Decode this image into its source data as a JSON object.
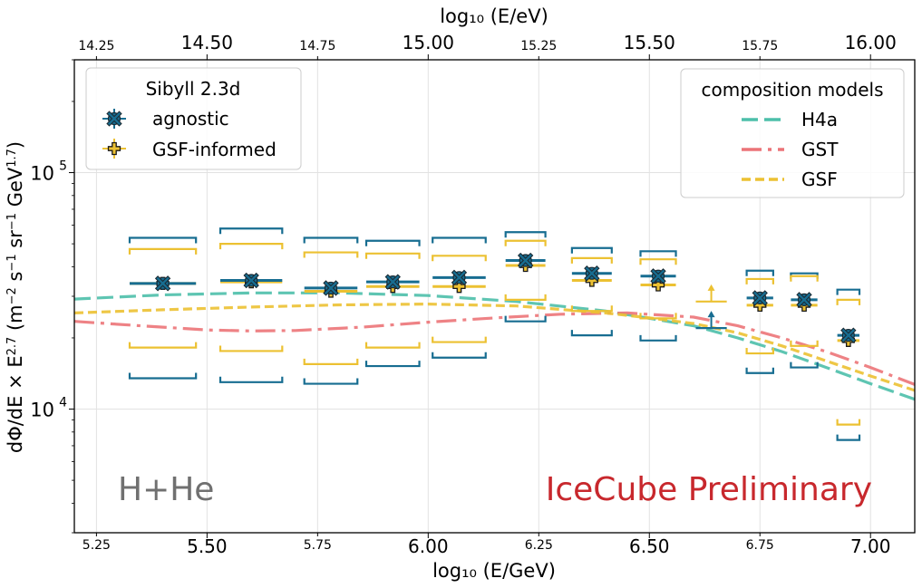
{
  "chart_data": {
    "type": "scatter",
    "xlabel": "log₁₀ (E/GeV)",
    "x2label": "log₁₀ (E/eV)",
    "ylabel_parts": [
      "dΦ/dE × E",
      "2.7",
      "  (m",
      "−2",
      " s",
      "−1",
      " sr",
      "−1",
      " GeV",
      "1.7",
      ")"
    ],
    "xlim": [
      5.2,
      7.1
    ],
    "ylim": [
      3000,
      300000
    ],
    "yscale": "log",
    "grid": true,
    "x_major_ticks": [
      "5.50",
      "6.00",
      "6.50",
      "7.00"
    ],
    "x_minor_ticks": [
      "5.25",
      "5.75",
      "6.25",
      "6.75"
    ],
    "x2_major_ticks": [
      "14.50",
      "15.00",
      "15.50",
      "16.00"
    ],
    "x2_minor_ticks": [
      "14.25",
      "14.75",
      "15.25",
      "15.75"
    ],
    "y_ticks": [
      {
        "value": 10000,
        "base": "10",
        "exp": "4"
      },
      {
        "value": 100000,
        "base": "10",
        "exp": "5"
      }
    ],
    "annotations": [
      {
        "text": "H+He",
        "color": "#707070"
      },
      {
        "text": "IceCube Preliminary",
        "color": "#c8282d"
      }
    ],
    "legend_model": {
      "title": "Sibyll 2.3d",
      "entries": [
        "agnostic",
        "GSF-informed"
      ]
    },
    "legend_composition": {
      "title": "composition models",
      "entries": [
        "H4a",
        "GST",
        "GSF"
      ]
    },
    "series": [
      {
        "name": "agnostic",
        "color": "#176d91",
        "marker": "x-circle",
        "points": [
          {
            "x": 5.4,
            "y": 34000,
            "xerr": [
              0.075,
              0.075
            ],
            "band": [
              13500,
              53000
            ]
          },
          {
            "x": 5.6,
            "y": 35000,
            "xerr": [
              0.07,
              0.07
            ],
            "band": [
              13000,
              58000
            ]
          },
          {
            "x": 5.78,
            "y": 32500,
            "xerr": [
              0.06,
              0.06
            ],
            "band": [
              12800,
              53000
            ]
          },
          {
            "x": 5.92,
            "y": 34500,
            "xerr": [
              0.06,
              0.06
            ],
            "band": [
              15200,
              51500
            ]
          },
          {
            "x": 6.07,
            "y": 36000,
            "xerr": [
              0.06,
              0.06
            ],
            "band": [
              16500,
              53000
            ]
          },
          {
            "x": 6.22,
            "y": 42500,
            "xerr": [
              0.045,
              0.045
            ],
            "band": [
              23500,
              56000
            ]
          },
          {
            "x": 6.37,
            "y": 37500,
            "xerr": [
              0.045,
              0.045
            ],
            "band": [
              20500,
              48000
            ]
          },
          {
            "x": 6.52,
            "y": 36500,
            "xerr": [
              0.04,
              0.04
            ],
            "band": [
              19500,
              46500
            ]
          },
          {
            "x": 6.75,
            "y": 29500,
            "xerr": [
              0.03,
              0.03
            ],
            "band": [
              14200,
              38500
            ]
          },
          {
            "x": 6.85,
            "y": 29000,
            "xerr": [
              0.03,
              0.03
            ],
            "band": [
              15000,
              37500
            ]
          },
          {
            "x": 6.95,
            "y": 20500,
            "xerr": [
              0.025,
              0.025
            ],
            "band": [
              7400,
              32000
            ]
          }
        ],
        "upper_limit": {
          "x": 6.64,
          "y": 22000,
          "xerr": [
            0.035,
            0.035
          ]
        }
      },
      {
        "name": "GSF-informed",
        "color": "#ecc132",
        "marker": "plus",
        "points": [
          {
            "x": 5.4,
            "y": 34000,
            "xerr": [
              0.075,
              0.075
            ],
            "band": [
              18200,
              47500
            ]
          },
          {
            "x": 5.6,
            "y": 34500,
            "xerr": [
              0.07,
              0.07
            ],
            "band": [
              17600,
              50000
            ]
          },
          {
            "x": 5.78,
            "y": 31500,
            "xerr": [
              0.06,
              0.06
            ],
            "band": [
              15500,
              46000
            ]
          },
          {
            "x": 5.92,
            "y": 33000,
            "xerr": [
              0.06,
              0.06
            ],
            "band": [
              18200,
              45500
            ]
          },
          {
            "x": 6.07,
            "y": 33000,
            "xerr": [
              0.06,
              0.06
            ],
            "band": [
              19200,
              44500
            ]
          },
          {
            "x": 6.22,
            "y": 40500,
            "xerr": [
              0.045,
              0.045
            ],
            "band": [
              29000,
              51500
            ]
          },
          {
            "x": 6.37,
            "y": 35000,
            "xerr": [
              0.045,
              0.045
            ],
            "band": [
              26000,
              43500
            ]
          },
          {
            "x": 6.52,
            "y": 33500,
            "xerr": [
              0.04,
              0.04
            ],
            "band": [
              24200,
              43000
            ]
          },
          {
            "x": 6.75,
            "y": 27500,
            "xerr": [
              0.03,
              0.03
            ],
            "band": [
              17200,
              35500
            ]
          },
          {
            "x": 6.85,
            "y": 27500,
            "xerr": [
              0.03,
              0.03
            ],
            "band": [
              18500,
              36500
            ]
          },
          {
            "x": 6.95,
            "y": 19500,
            "xerr": [
              0.025,
              0.025
            ],
            "band": [
              8600,
              29000
            ]
          }
        ],
        "upper_limit": {
          "x": 6.64,
          "y": 28500,
          "xerr": [
            0.035,
            0.035
          ]
        }
      }
    ],
    "model_lines": [
      {
        "name": "H4a",
        "color": "#4dbfaa",
        "dash": "18 7",
        "x": [
          5.2,
          5.4,
          5.6,
          5.8,
          6.0,
          6.2,
          6.4,
          6.6,
          6.7,
          6.8,
          6.9,
          7.0,
          7.1
        ],
        "y": [
          29200,
          30400,
          31000,
          31000,
          30200,
          28500,
          26000,
          22500,
          20000,
          17500,
          15000,
          12800,
          11000
        ]
      },
      {
        "name": "GST",
        "color": "#ec7478",
        "dash": "22 7 4 7",
        "x": [
          5.2,
          5.35,
          5.5,
          5.6,
          5.7,
          5.85,
          6.0,
          6.15,
          6.3,
          6.45,
          6.6,
          6.7,
          6.8,
          6.9,
          7.0,
          7.1
        ],
        "y": [
          23500,
          22500,
          21600,
          21400,
          21500,
          22200,
          23300,
          24300,
          25200,
          25500,
          24500,
          22500,
          20000,
          17500,
          15000,
          12700
        ]
      },
      {
        "name": "GSF",
        "color": "#ecc132",
        "dash": "10 5",
        "x": [
          5.2,
          5.4,
          5.6,
          5.8,
          6.0,
          6.2,
          6.4,
          6.5,
          6.6,
          6.7,
          6.8,
          6.9,
          7.0,
          7.1
        ],
        "y": [
          25500,
          26300,
          27000,
          27600,
          27800,
          27300,
          25500,
          24300,
          23000,
          21000,
          18500,
          16000,
          13800,
          12000
        ]
      }
    ]
  }
}
